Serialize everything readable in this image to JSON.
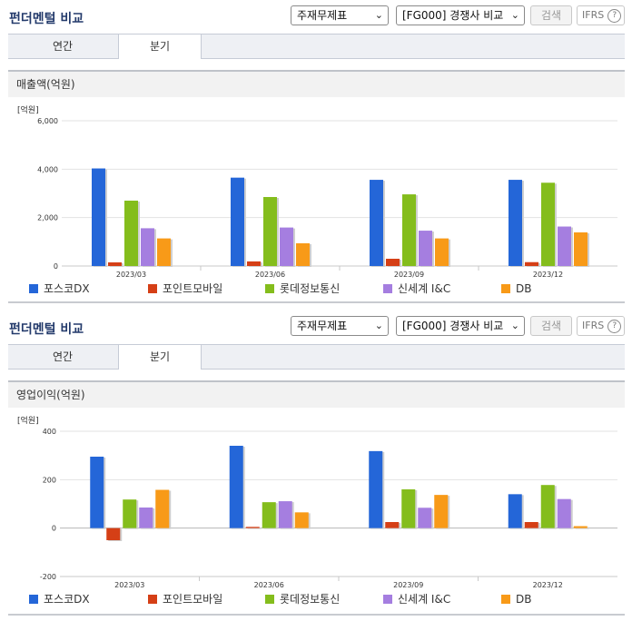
{
  "header": {
    "title": "펀더멘털 비교",
    "select1": "주재무제표",
    "select2": "[FG000] 경쟁사 비교",
    "search_label": "검색",
    "ifrs_label": "IFRS",
    "help": "?"
  },
  "tabs": [
    "연간",
    "분기"
  ],
  "active_tab": "분기",
  "colors": {
    "포스코DX": "#2466d8",
    "포인트모바일": "#d53f16",
    "롯데정보통신": "#84bd1c",
    "신세계 I&C": "#a57ee0",
    "DB": "#f89a18"
  },
  "chart_data": [
    {
      "type": "bar",
      "title": "매출액(억원)",
      "unit_label": "[억원]",
      "categories": [
        "2023/03",
        "2023/06",
        "2023/09",
        "2023/12"
      ],
      "ylim": [
        0,
        6000
      ],
      "yticks": [
        0,
        2000,
        4000,
        6000
      ],
      "ytick_labels": [
        "0",
        "2,000",
        "4,000",
        "6,000"
      ],
      "grid": true,
      "legend": "bottom",
      "series": [
        {
          "name": "포스코DX",
          "values": [
            4030,
            3650,
            3560,
            3560
          ]
        },
        {
          "name": "포인트모바일",
          "values": [
            150,
            190,
            300,
            160
          ]
        },
        {
          "name": "롯데정보통신",
          "values": [
            2700,
            2850,
            2960,
            3440
          ]
        },
        {
          "name": "신세계 I&C",
          "values": [
            1560,
            1590,
            1460,
            1630
          ]
        },
        {
          "name": "DB",
          "values": [
            1140,
            940,
            1140,
            1390
          ]
        }
      ]
    },
    {
      "type": "bar",
      "title": "영업이익(억원)",
      "unit_label": "[억원]",
      "categories": [
        "2023/03",
        "2023/06",
        "2023/09",
        "2023/12"
      ],
      "ylim": [
        -200,
        400
      ],
      "yticks": [
        -200,
        0,
        200,
        400
      ],
      "ytick_labels": [
        "-200",
        "0",
        "200",
        "400"
      ],
      "grid": true,
      "legend": "bottom",
      "series": [
        {
          "name": "포스코DX",
          "values": [
            295,
            340,
            318,
            140
          ]
        },
        {
          "name": "포인트모바일",
          "values": [
            -50,
            5,
            25,
            25
          ]
        },
        {
          "name": "롯데정보통신",
          "values": [
            118,
            107,
            160,
            178
          ]
        },
        {
          "name": "신세계 I&C",
          "values": [
            85,
            111,
            84,
            120
          ]
        },
        {
          "name": "DB",
          "values": [
            158,
            65,
            137,
            8
          ]
        }
      ]
    }
  ]
}
